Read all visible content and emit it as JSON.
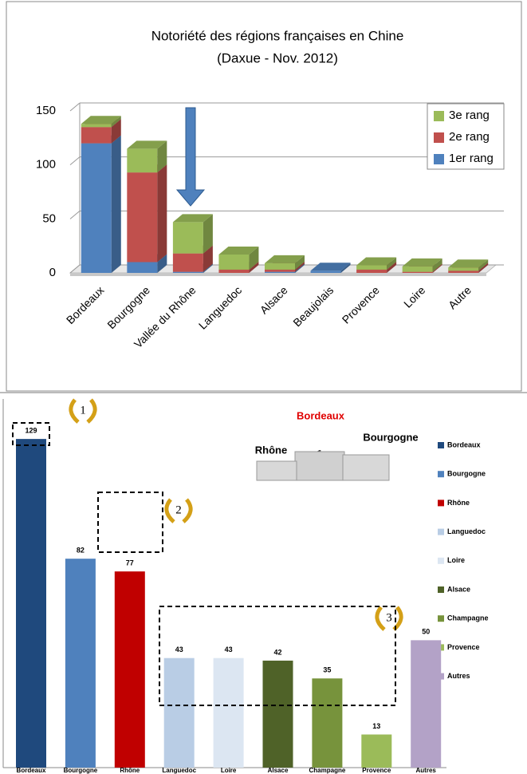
{
  "chart_data": [
    {
      "type": "bar",
      "stacked": true,
      "depth3d": true,
      "title": "Notoriété des régions françaises en Chine",
      "subtitle": "(Daxue - Nov. 2012)",
      "categories": [
        "Bordeaux",
        "Bourgogne",
        "Vallée du Rhône",
        "Languedoc",
        "Alsace",
        "Beaujolais",
        "Provence",
        "Loire",
        "Autre"
      ],
      "series": [
        {
          "name": "1er rang",
          "color": "#4f81bd",
          "values": [
            120,
            10,
            1,
            0,
            1,
            2,
            0,
            0,
            0
          ]
        },
        {
          "name": "2e rang",
          "color": "#c0504d",
          "values": [
            15,
            83,
            17,
            3,
            2,
            0,
            3,
            1,
            2
          ]
        },
        {
          "name": "3e rang",
          "color": "#9bbb59",
          "values": [
            3,
            22,
            29,
            14,
            6,
            0,
            4,
            5,
            3
          ]
        }
      ],
      "ylim": [
        0,
        150
      ],
      "yticks": [
        0,
        50,
        100,
        150
      ],
      "grid": true,
      "legend": "right"
    },
    {
      "type": "bar",
      "categories": [
        "Bordeaux",
        "Bourgogne",
        "Rhône",
        "Languedoc",
        "Loire",
        "Alsace",
        "Champagne",
        "Provence",
        "Autres"
      ],
      "values": [
        129,
        82,
        77,
        43,
        43,
        42,
        35,
        13,
        50
      ],
      "colors": [
        "#1f497d",
        "#4f81bd",
        "#c00000",
        "#b9cde5",
        "#dce6f2",
        "#4f6228",
        "#77933c",
        "#9bbb59",
        "#b3a2c7"
      ],
      "ylim": [
        0,
        140
      ],
      "legend": "right",
      "podium": {
        "first": "Bordeaux",
        "second": "Bourgogne",
        "third": "Rhône",
        "places": [
          "1",
          "2",
          "3"
        ]
      },
      "rank_badges": [
        "1",
        "2",
        "3"
      ]
    }
  ]
}
